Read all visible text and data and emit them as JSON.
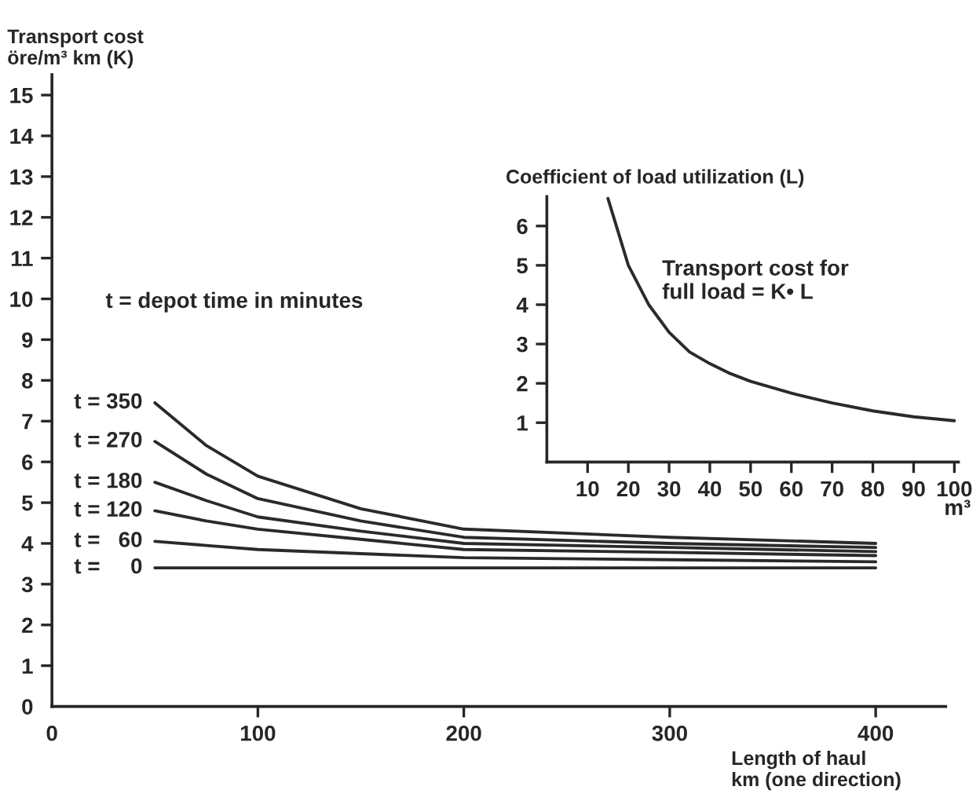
{
  "chart_data": [
    {
      "type": "line",
      "ylabel": "Transport cost\nöre/m³ km (K)",
      "xlabel": "Length of haul\nkm (one direction)",
      "annotations": [
        "t = depot time in minutes"
      ],
      "x": [
        50,
        75,
        100,
        150,
        200,
        300,
        400
      ],
      "series": [
        {
          "name": "t = 350",
          "color": "#2a2a2a",
          "values": [
            7.45,
            6.4,
            5.65,
            4.85,
            4.35,
            4.15,
            4.0
          ]
        },
        {
          "name": "t = 270",
          "color": "#2a2a2a",
          "values": [
            6.5,
            5.7,
            5.1,
            4.55,
            4.15,
            4.0,
            3.9
          ]
        },
        {
          "name": "t = 180",
          "color": "#2a2a2a",
          "values": [
            5.5,
            5.05,
            4.65,
            4.3,
            4.0,
            3.9,
            3.8
          ]
        },
        {
          "name": "t = 120",
          "color": "#2a2a2a",
          "values": [
            4.8,
            4.55,
            4.35,
            4.1,
            3.85,
            3.78,
            3.7
          ]
        },
        {
          "name": "t =   60",
          "color": "#2a2a2a",
          "values": [
            4.05,
            3.95,
            3.85,
            3.75,
            3.65,
            3.6,
            3.55
          ]
        },
        {
          "name": "t =     0",
          "color": "#2a2a2a",
          "values": [
            3.4,
            3.4,
            3.4,
            3.4,
            3.4,
            3.4,
            3.4
          ]
        }
      ],
      "xlim": [
        0,
        434
      ],
      "ylim": [
        0,
        15.5
      ],
      "xticks": [
        0,
        100,
        200,
        300,
        400
      ],
      "yticks": [
        0,
        1,
        2,
        3,
        4,
        5,
        6,
        7,
        8,
        9,
        10,
        11,
        12,
        13,
        14,
        15
      ],
      "grid": false,
      "legend": "left",
      "marker": "none",
      "line_style": "solid"
    },
    {
      "type": "line",
      "title": "Coefficient of load utilization (L)",
      "xlabel": "m³",
      "annotations": [
        "Transport cost for\nfull load = K• L"
      ],
      "x": [
        15,
        20,
        25,
        30,
        35,
        40,
        45,
        50,
        60,
        70,
        80,
        90,
        100
      ],
      "series": [
        {
          "color": "#2a2a2a",
          "values": [
            6.7,
            5.0,
            4.0,
            3.3,
            2.8,
            2.5,
            2.25,
            2.05,
            1.75,
            1.5,
            1.3,
            1.15,
            1.05
          ]
        }
      ],
      "xlim": [
        0,
        101
      ],
      "ylim": [
        0,
        6.75
      ],
      "xticks": [
        10,
        20,
        30,
        40,
        50,
        60,
        70,
        80,
        90,
        100
      ],
      "yticks": [
        1,
        2,
        3,
        4,
        5,
        6
      ],
      "grid": false,
      "legend": false,
      "marker": "none",
      "line_style": "solid"
    }
  ]
}
